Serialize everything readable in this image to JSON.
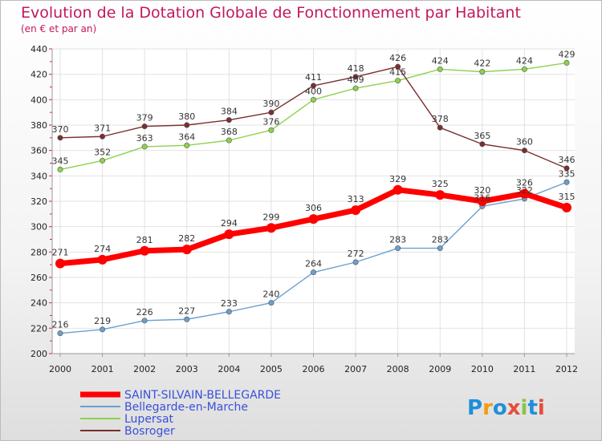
{
  "chart_data": {
    "type": "line",
    "title": "Evolution de la Dotation Globale de Fonctionnement par Habitant",
    "subtitle": "(en € et par an)",
    "x": [
      "2000",
      "2001",
      "2002",
      "2003",
      "2004",
      "2005",
      "2006",
      "2007",
      "2008",
      "2009",
      "2010",
      "2011",
      "2012"
    ],
    "ylim": [
      200,
      440
    ],
    "yticks": [
      200,
      220,
      240,
      260,
      280,
      300,
      320,
      340,
      360,
      380,
      400,
      420,
      440
    ],
    "grid": true,
    "legend_position": "bottom-left",
    "series": [
      {
        "name": "SAINT-SILVAIN-BELLEGARDE",
        "color": "#ff0000",
        "values": [
          271,
          274,
          281,
          282,
          294,
          299,
          306,
          313,
          329,
          325,
          320,
          326,
          315
        ],
        "labels": [
          "271",
          "274",
          "281",
          "282",
          "294",
          "299",
          "306",
          "313",
          "329",
          "325",
          "320",
          "326",
          "315"
        ]
      },
      {
        "name": "Bellegarde-en-Marche",
        "color": "#6a9fcf",
        "values": [
          216,
          219,
          226,
          227,
          233,
          240,
          264,
          272,
          283,
          283,
          316,
          322,
          335
        ],
        "labels": [
          "216",
          "219",
          "226",
          "227",
          "233",
          "240",
          "264",
          "272",
          "283",
          "283",
          "316",
          "322",
          "335"
        ]
      },
      {
        "name": "Lupersat",
        "color": "#8ed14f",
        "values": [
          345,
          352,
          363,
          364,
          368,
          376,
          400,
          409,
          415,
          424,
          422,
          424,
          429
        ],
        "labels": [
          "345",
          "352",
          "363",
          "364",
          "368",
          "376",
          "400",
          "409",
          "415",
          "424",
          "422",
          "424",
          "429"
        ]
      },
      {
        "name": "Bosroger",
        "color": "#7a2e2e",
        "values": [
          370,
          371,
          379,
          380,
          384,
          390,
          411,
          418,
          426,
          378,
          365,
          360,
          346
        ],
        "labels": [
          "370",
          "371",
          "379",
          "380",
          "384",
          "390",
          "411",
          "418",
          "426",
          "378",
          "365",
          "360",
          "346"
        ]
      }
    ]
  },
  "logo": {
    "text": "Proxiti"
  }
}
